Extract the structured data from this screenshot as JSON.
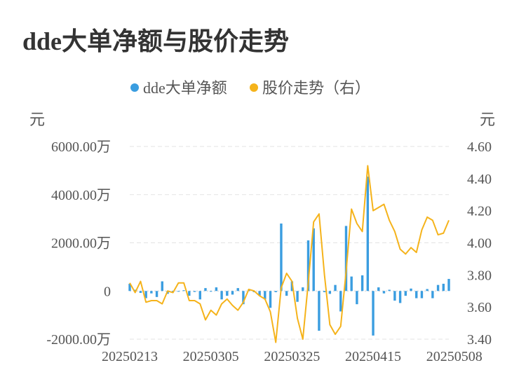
{
  "chart_data": {
    "type": "bar+line",
    "title": "dde大单净额与股价走势",
    "legend_position": "top-center",
    "grid": true,
    "y_left": {
      "unit_label": "元",
      "ylim": [
        -2000,
        6000
      ],
      "ticks": [
        -2000,
        0,
        2000,
        4000,
        6000
      ],
      "tick_labels": [
        "-2000.00万",
        "0",
        "2000.00万",
        "4000.00万",
        "6000.00万"
      ]
    },
    "y_right": {
      "unit_label": "元",
      "ylim": [
        3.4,
        4.6
      ],
      "ticks": [
        3.4,
        3.6,
        3.8,
        4.0,
        4.2,
        4.4,
        4.6
      ],
      "tick_labels": [
        "3.40",
        "3.60",
        "3.80",
        "4.00",
        "4.20",
        "4.40",
        "4.60"
      ]
    },
    "x_tick_labels": [
      {
        "index": 0,
        "label": "20250213"
      },
      {
        "index": 15,
        "label": "20250305"
      },
      {
        "index": 30,
        "label": "20250325"
      },
      {
        "index": 45,
        "label": "20250415"
      },
      {
        "index": 60,
        "label": "20250508"
      }
    ],
    "series": [
      {
        "name": "dde大单净额",
        "type": "bar",
        "axis": "left",
        "color": "#3a9de0",
        "values": [
          300,
          50,
          -80,
          -300,
          -100,
          -250,
          400,
          -120,
          -50,
          -30,
          30,
          -200,
          -40,
          -350,
          120,
          -30,
          150,
          -350,
          -200,
          -150,
          120,
          -550,
          50,
          -50,
          -200,
          -350,
          -700,
          -50,
          2800,
          -200,
          400,
          -450,
          150,
          2100,
          2600,
          -1650,
          -50,
          -120,
          250,
          -850,
          2700,
          600,
          -550,
          650,
          4750,
          -1850,
          150,
          -100,
          50,
          -400,
          -500,
          -200,
          100,
          -300,
          -300,
          80,
          -300,
          250,
          300,
          500
        ]
      },
      {
        "name": "股价走势（右）",
        "type": "line",
        "axis": "right",
        "color": "#f5b31b",
        "values": [
          3.75,
          3.69,
          3.76,
          3.63,
          3.64,
          3.64,
          3.62,
          3.7,
          3.69,
          3.75,
          3.75,
          3.64,
          3.64,
          3.62,
          3.52,
          3.58,
          3.55,
          3.62,
          3.65,
          3.61,
          3.58,
          3.63,
          3.71,
          3.7,
          3.67,
          3.65,
          3.57,
          3.38,
          3.72,
          3.81,
          3.76,
          3.53,
          3.4,
          3.75,
          4.13,
          4.18,
          3.8,
          3.49,
          3.43,
          3.48,
          3.82,
          4.21,
          4.12,
          4.07,
          4.48,
          4.2,
          4.22,
          4.24,
          4.14,
          4.07,
          3.96,
          3.93,
          3.97,
          3.94,
          4.08,
          4.16,
          4.14,
          4.05,
          4.06,
          4.14
        ]
      }
    ]
  }
}
